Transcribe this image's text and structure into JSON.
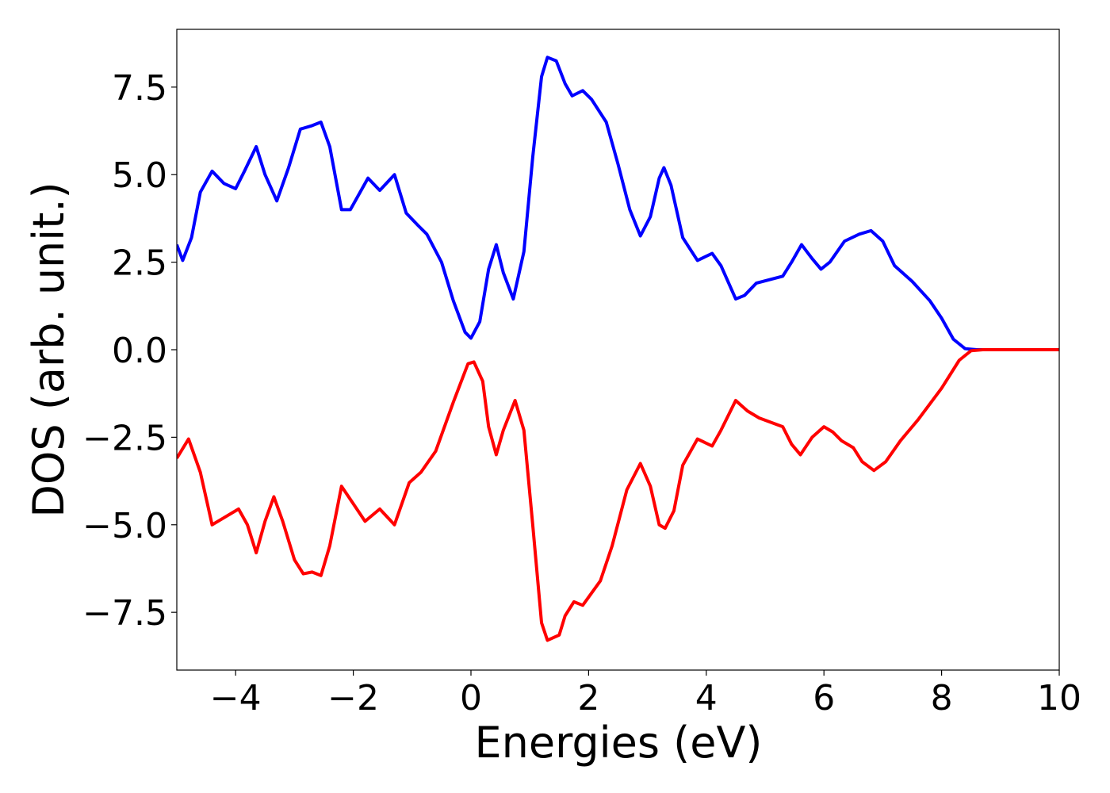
{
  "chart_data": {
    "type": "line",
    "xlabel": "Energies (eV)",
    "ylabel": "DOS (arb. unit.)",
    "xlim": [
      -5,
      10
    ],
    "ylim": [
      -9.15,
      9.15
    ],
    "xticks": [
      {
        "value": -4,
        "label": "−4"
      },
      {
        "value": -2,
        "label": "−2"
      },
      0,
      2,
      4,
      6,
      8,
      10
    ],
    "yticks": [
      {
        "value": -7.5,
        "label": "−7.5"
      },
      {
        "value": -5,
        "label": "−5.0"
      },
      {
        "value": -2.5,
        "label": "−2.5"
      },
      {
        "value": 0,
        "label": "0.0"
      },
      2.5,
      {
        "value": 5,
        "label": "5.0"
      },
      7.5
    ],
    "series": [
      {
        "color": "#0000ff",
        "x": [
          -5,
          -4.9,
          -4.75,
          -4.6,
          -4.4,
          -4.2,
          -4.0,
          -3.85,
          -3.65,
          -3.5,
          -3.3,
          -3.1,
          -2.9,
          -2.7,
          -2.55,
          -2.4,
          -2.2,
          -2.05,
          -1.75,
          -1.55,
          -1.3,
          -1.1,
          -0.9,
          -0.75,
          -0.5,
          -0.3,
          -0.1,
          0.0,
          0.15,
          0.3,
          0.43,
          0.55,
          0.72,
          0.9,
          1.05,
          1.2,
          1.3,
          1.45,
          1.6,
          1.72,
          1.9,
          2.05,
          2.3,
          2.5,
          2.7,
          2.88,
          3.05,
          3.2,
          3.28,
          3.4,
          3.6,
          3.85,
          4.1,
          4.25,
          4.5,
          4.65,
          4.85,
          5.3,
          5.45,
          5.62,
          5.8,
          5.95,
          6.1,
          6.35,
          6.6,
          6.8,
          7.0,
          7.2,
          7.5,
          7.8,
          8.0,
          8.2,
          8.4,
          8.6,
          10
        ],
        "values": [
          3.0,
          2.55,
          3.2,
          4.5,
          5.1,
          4.75,
          4.6,
          5.1,
          5.8,
          5.0,
          4.25,
          5.2,
          6.3,
          6.4,
          6.5,
          5.8,
          4.0,
          4.0,
          4.9,
          4.55,
          5.0,
          3.9,
          3.55,
          3.3,
          2.5,
          1.4,
          0.5,
          0.33,
          0.8,
          2.3,
          3.0,
          2.2,
          1.45,
          2.8,
          5.5,
          7.8,
          8.35,
          8.25,
          7.6,
          7.25,
          7.4,
          7.15,
          6.5,
          5.3,
          4.0,
          3.25,
          3.8,
          4.9,
          5.2,
          4.7,
          3.2,
          2.55,
          2.75,
          2.4,
          1.45,
          1.55,
          1.9,
          2.1,
          2.5,
          3.0,
          2.6,
          2.3,
          2.5,
          3.1,
          3.3,
          3.4,
          3.1,
          2.4,
          1.95,
          1.4,
          0.9,
          0.3,
          0.03,
          0,
          0
        ]
      },
      {
        "color": "#ff0000",
        "x": [
          -5,
          -4.8,
          -4.6,
          -4.4,
          -4.2,
          -3.95,
          -3.8,
          -3.65,
          -3.5,
          -3.35,
          -3.2,
          -3.0,
          -2.85,
          -2.7,
          -2.55,
          -2.4,
          -2.2,
          -2.0,
          -1.8,
          -1.55,
          -1.3,
          -1.05,
          -0.85,
          -0.6,
          -0.3,
          -0.05,
          0.05,
          0.2,
          0.3,
          0.43,
          0.55,
          0.75,
          0.9,
          1.05,
          1.2,
          1.3,
          1.5,
          1.6,
          1.75,
          1.9,
          2.2,
          2.4,
          2.65,
          2.88,
          3.05,
          3.2,
          3.3,
          3.45,
          3.6,
          3.85,
          4.1,
          4.25,
          4.5,
          4.7,
          4.9,
          5.3,
          5.45,
          5.6,
          5.8,
          6.0,
          6.15,
          6.3,
          6.5,
          6.65,
          6.85,
          7.05,
          7.3,
          7.6,
          8.0,
          8.3,
          8.5,
          8.7,
          10
        ],
        "values": [
          -3.1,
          -2.55,
          -3.5,
          -5.0,
          -4.8,
          -4.55,
          -5.0,
          -5.8,
          -4.9,
          -4.2,
          -4.9,
          -6.0,
          -6.4,
          -6.35,
          -6.45,
          -5.6,
          -3.9,
          -4.4,
          -4.9,
          -4.55,
          -5.0,
          -3.8,
          -3.5,
          -2.9,
          -1.5,
          -0.4,
          -0.35,
          -0.9,
          -2.2,
          -3.0,
          -2.3,
          -1.45,
          -2.3,
          -5.0,
          -7.8,
          -8.3,
          -8.15,
          -7.6,
          -7.2,
          -7.3,
          -6.6,
          -5.6,
          -4.0,
          -3.25,
          -3.9,
          -5.0,
          -5.1,
          -4.6,
          -3.3,
          -2.55,
          -2.75,
          -2.3,
          -1.45,
          -1.75,
          -1.95,
          -2.2,
          -2.7,
          -3.0,
          -2.5,
          -2.2,
          -2.35,
          -2.6,
          -2.8,
          -3.2,
          -3.45,
          -3.2,
          -2.6,
          -2.0,
          -1.1,
          -0.3,
          -0.03,
          0,
          0
        ]
      }
    ]
  }
}
